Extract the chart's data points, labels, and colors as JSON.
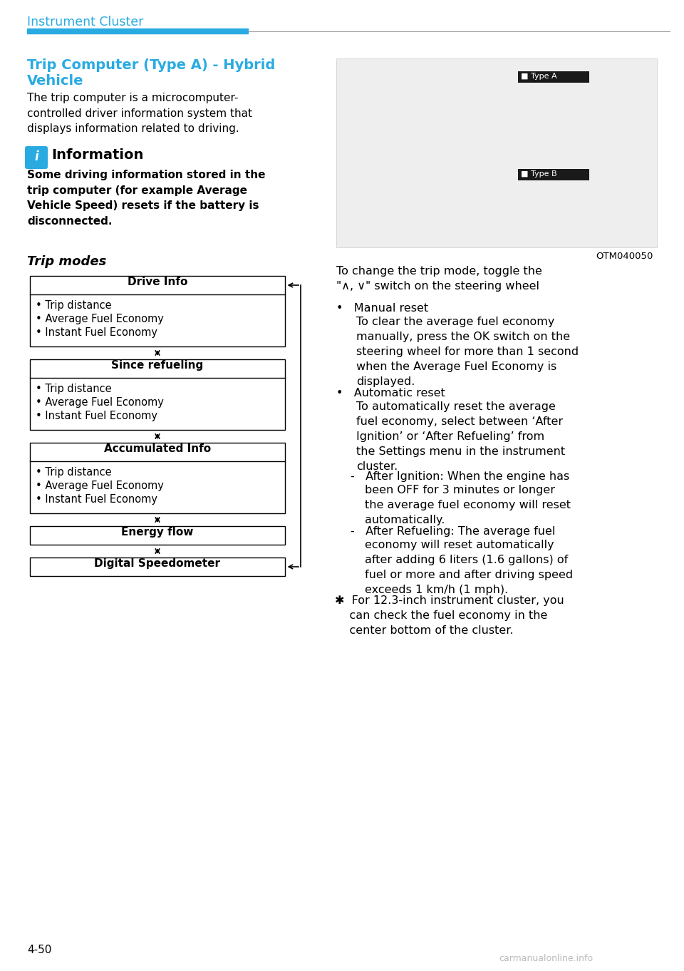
{
  "page_header": "Instrument Cluster",
  "header_blue": "#29ABE2",
  "section_title_line1": "Trip Computer (Type A) - Hybrid",
  "section_title_line2": "Vehicle",
  "section_title_color": "#29ABE2",
  "body_text_1": "The trip computer is a microcomputer-\ncontrolled driver information system that\ndisplays information related to driving.",
  "info_title": "Information",
  "info_bold_text": "Some driving information stored in the\ntrip computer (for example Average\nVehicle Speed) resets if the battery is\ndisconnected.",
  "trip_modes_title": "Trip modes",
  "boxes": [
    {
      "header": "Drive Info",
      "items": [
        "• Trip distance",
        "• Average Fuel Economy",
        "• Instant Fuel Economy"
      ],
      "left_arrow": true
    },
    {
      "header": "Since refueling",
      "items": [
        "• Trip distance",
        "• Average Fuel Economy",
        "• Instant Fuel Economy"
      ],
      "left_arrow": false
    },
    {
      "header": "Accumulated Info",
      "items": [
        "• Trip distance",
        "• Average Fuel Economy",
        "• Instant Fuel Economy"
      ],
      "left_arrow": false
    },
    {
      "header": "Energy flow",
      "items": [],
      "left_arrow": false
    },
    {
      "header": "Digital Speedometer",
      "items": [],
      "left_arrow": true
    }
  ],
  "image_caption": "OTM040050",
  "toggle_text": "To change the trip mode, toggle the\n\"∧, ∨\" switch on the steering wheel",
  "bullet1_head": "•   Manual reset",
  "bullet1_body": "To clear the average fuel economy\nmanually, press the OK switch on the\nsteering wheel for more than 1 second\nwhen the Average Fuel Economy is\ndisplayed.",
  "bullet2_head": "•   Automatic reset",
  "bullet2_body": "To automatically reset the average\nfuel economy, select between ‘After\nIgnition’ or ‘After Refueling’ from\nthe Settings menu in the instrument\ncluster.",
  "sub1_head": "-   After Ignition: When the engine has",
  "sub1_body": "been OFF for 3 minutes or longer\nthe average fuel economy will reset\nautomatically.",
  "sub2_head": "-   After Refueling: The average fuel",
  "sub2_body": "economy will reset automatically\nafter adding 6 liters (1.6 gallons) of\nfuel or more and after driving speed\nexceeds 1 km/h (1 mph).",
  "footnote": "✱  For 12.3-inch instrument cluster, you\n    can check the fuel economy in the\n    center bottom of the cluster.",
  "page_number": "4-50",
  "watermark": "carmanualonline.info",
  "bg_color": "#FFFFFF",
  "text_color": "#000000",
  "box_border_color": "#000000",
  "gray_line_color": "#999999"
}
